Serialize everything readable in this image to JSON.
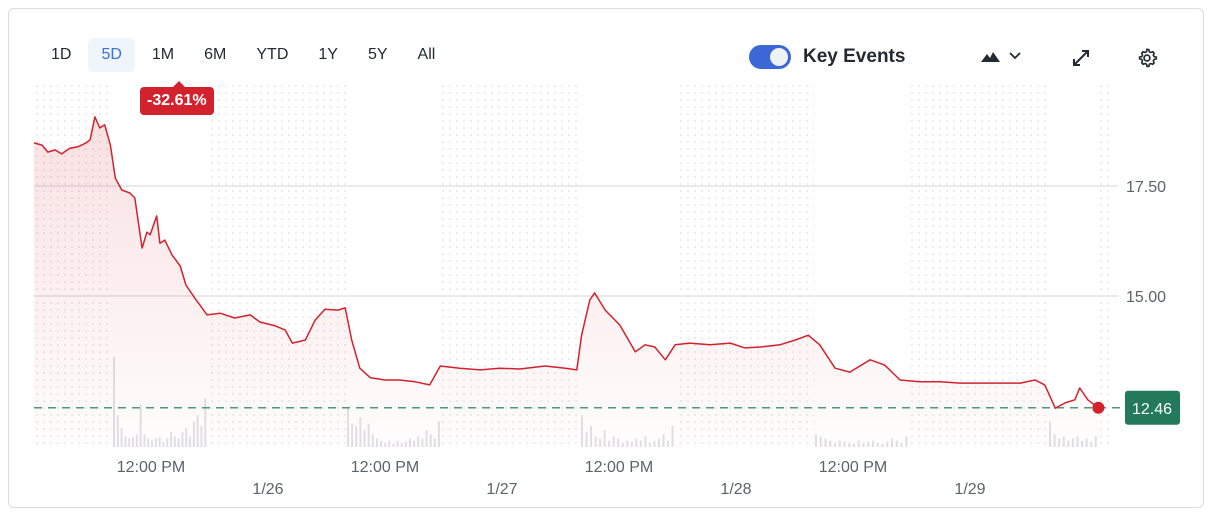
{
  "toolbar": {
    "ranges": [
      "1D",
      "5D",
      "1M",
      "6M",
      "YTD",
      "1Y",
      "5Y",
      "All"
    ],
    "active_range": "5D",
    "change_badge": "-32.61%",
    "key_events_label": "Key Events",
    "key_events_on": true,
    "icons": [
      "mountain-chart-type-icon",
      "chevron-down-icon",
      "expand-icon",
      "gear-icon"
    ]
  },
  "colors": {
    "line": "#d2222d",
    "accent": "#3c67d7",
    "last_price_badge": "#227a5a",
    "baseline": "#4c9a7e"
  },
  "chart_data": {
    "type": "area",
    "title": "",
    "xlabel": "",
    "ylabel": "",
    "ylim": [
      11.7,
      19.8
    ],
    "y_ticks": [
      15.0,
      17.5
    ],
    "y_tick_labels": [
      "15.00",
      "17.50"
    ],
    "x_tick_labels": [
      {
        "at": "1/25 12:00",
        "label": "12:00 PM"
      },
      {
        "at": "1/26 00:00",
        "label": "1/26"
      },
      {
        "at": "1/26 12:00",
        "label": "12:00 PM"
      },
      {
        "at": "1/27 00:00",
        "label": "1/27"
      },
      {
        "at": "1/27 12:00",
        "label": "12:00 PM"
      },
      {
        "at": "1/28 00:00",
        "label": "1/28"
      },
      {
        "at": "1/28 12:00",
        "label": "12:00 PM"
      },
      {
        "at": "1/29 00:00",
        "label": "1/29"
      }
    ],
    "last_price": 12.46,
    "last_price_label": "12.46",
    "grid": true,
    "regular_sessions": [
      [
        "1/25 08:00",
        "1/25 17:45"
      ],
      [
        "1/26 08:00",
        "1/26 17:45"
      ],
      [
        "1/27 08:00",
        "1/27 17:45"
      ],
      [
        "1/28 08:00",
        "1/28 17:45"
      ],
      [
        "1/29 08:00",
        "1/29 13:10"
      ]
    ],
    "series": [
      {
        "points": [
          [
            "1/25 00:00",
            18.48
          ],
          [
            "1/25 00:50",
            18.43
          ],
          [
            "1/25 01:25",
            18.27
          ],
          [
            "1/25 02:10",
            18.32
          ],
          [
            "1/25 02:50",
            18.23
          ],
          [
            "1/25 03:40",
            18.36
          ],
          [
            "1/25 04:30",
            18.39
          ],
          [
            "1/25 05:20",
            18.48
          ],
          [
            "1/25 05:45",
            18.55
          ],
          [
            "1/25 06:15",
            19.07
          ],
          [
            "1/25 06:45",
            18.82
          ],
          [
            "1/25 07:15",
            18.89
          ],
          [
            "1/25 07:50",
            18.43
          ],
          [
            "1/25 08:20",
            17.68
          ],
          [
            "1/25 09:00",
            17.41
          ],
          [
            "1/25 09:50",
            17.34
          ],
          [
            "1/25 10:20",
            17.23
          ],
          [
            "1/25 11:05",
            16.09
          ],
          [
            "1/25 11:35",
            16.45
          ],
          [
            "1/25 11:55",
            16.39
          ],
          [
            "1/25 12:35",
            16.82
          ],
          [
            "1/25 12:55",
            16.2
          ],
          [
            "1/25 13:25",
            16.27
          ],
          [
            "1/25 14:10",
            15.93
          ],
          [
            "1/25 15:00",
            15.68
          ],
          [
            "1/25 15:35",
            15.25
          ],
          [
            "1/25 16:30",
            14.95
          ],
          [
            "1/25 17:45",
            14.57
          ],
          [
            "1/25 19:05",
            14.61
          ],
          [
            "1/25 20:35",
            14.5
          ],
          [
            "1/25 22:10",
            14.57
          ],
          [
            "1/25 23:10",
            14.41
          ],
          [
            "1/26 00:45",
            14.32
          ],
          [
            "1/26 01:45",
            14.23
          ],
          [
            "1/26 02:30",
            13.93
          ],
          [
            "1/26 03:50",
            14.0
          ],
          [
            "1/26 04:50",
            14.45
          ],
          [
            "1/26 05:50",
            14.7
          ],
          [
            "1/26 07:10",
            14.68
          ],
          [
            "1/26 07:55",
            14.73
          ],
          [
            "1/26 08:35",
            14.0
          ],
          [
            "1/26 09:25",
            13.36
          ],
          [
            "1/26 10:30",
            13.14
          ],
          [
            "1/26 12:00",
            13.09
          ],
          [
            "1/26 13:30",
            13.09
          ],
          [
            "1/26 15:05",
            13.05
          ],
          [
            "1/26 16:35",
            12.98
          ],
          [
            "1/26 17:40",
            13.41
          ],
          [
            "1/26 19:40",
            13.36
          ],
          [
            "1/26 21:45",
            13.32
          ],
          [
            "1/26 23:45",
            13.36
          ],
          [
            "1/27 01:50",
            13.34
          ],
          [
            "1/27 04:25",
            13.41
          ],
          [
            "1/27 06:30",
            13.36
          ],
          [
            "1/27 07:40",
            13.32
          ],
          [
            "1/27 08:10",
            14.11
          ],
          [
            "1/27 09:00",
            14.91
          ],
          [
            "1/27 09:30",
            15.07
          ],
          [
            "1/27 10:35",
            14.68
          ],
          [
            "1/27 12:05",
            14.34
          ],
          [
            "1/27 13:40",
            13.73
          ],
          [
            "1/27 14:40",
            13.89
          ],
          [
            "1/27 15:40",
            13.84
          ],
          [
            "1/27 16:45",
            13.55
          ],
          [
            "1/27 17:45",
            13.89
          ],
          [
            "1/27 19:15",
            13.93
          ],
          [
            "1/27 21:20",
            13.89
          ],
          [
            "1/27 23:25",
            13.93
          ],
          [
            "1/28 00:55",
            13.82
          ],
          [
            "1/28 02:30",
            13.84
          ],
          [
            "1/28 04:30",
            13.89
          ],
          [
            "1/28 06:05",
            14.0
          ],
          [
            "1/28 07:25",
            14.11
          ],
          [
            "1/28 08:35",
            13.89
          ],
          [
            "1/28 10:10",
            13.36
          ],
          [
            "1/28 11:40",
            13.27
          ],
          [
            "1/28 13:45",
            13.55
          ],
          [
            "1/28 15:15",
            13.43
          ],
          [
            "1/28 16:50",
            13.09
          ],
          [
            "1/28 18:50",
            13.05
          ],
          [
            "1/28 20:55",
            13.05
          ],
          [
            "1/28 23:00",
            13.02
          ],
          [
            "1/29 01:00",
            13.02
          ],
          [
            "1/29 03:05",
            13.02
          ],
          [
            "1/29 05:10",
            13.02
          ],
          [
            "1/29 06:40",
            13.09
          ],
          [
            "1/29 07:40",
            12.98
          ],
          [
            "1/29 08:45",
            12.45
          ],
          [
            "1/29 09:45",
            12.57
          ],
          [
            "1/29 10:45",
            12.64
          ],
          [
            "1/29 11:15",
            12.91
          ],
          [
            "1/29 12:05",
            12.64
          ],
          [
            "1/29 13:10",
            12.46
          ]
        ]
      }
    ],
    "volume": [
      [
        85,
        30,
        18,
        10,
        8,
        9,
        12,
        40,
        12,
        8,
        6,
        8,
        9,
        5,
        8,
        14,
        10,
        8,
        14,
        18,
        10,
        24,
        30,
        20,
        46
      ],
      [
        38,
        22,
        20,
        28,
        16,
        22,
        12,
        8,
        6,
        4,
        6,
        3,
        6,
        4,
        5,
        8,
        6,
        10,
        8,
        16,
        12,
        8,
        24
      ],
      [
        30,
        14,
        20,
        10,
        8,
        16,
        6,
        10,
        8,
        4,
        6,
        5,
        8,
        6,
        10,
        4,
        6,
        8,
        12,
        6,
        20
      ],
      [
        12,
        10,
        8,
        6,
        4,
        6,
        5,
        4,
        3,
        6,
        4,
        5,
        6,
        4,
        3,
        5,
        8,
        6,
        4,
        10
      ],
      [
        24,
        12,
        8,
        10,
        6,
        8,
        10,
        6,
        8,
        5,
        10
      ]
    ]
  }
}
